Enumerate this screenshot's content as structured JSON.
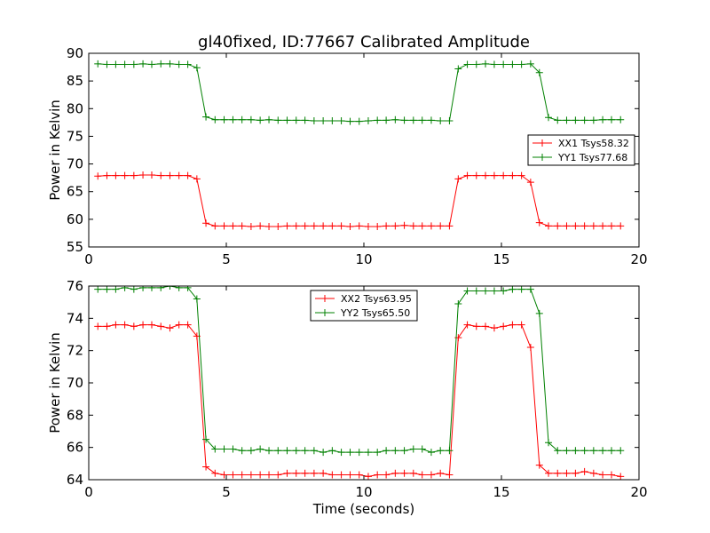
{
  "chart_data": [
    {
      "type": "line",
      "title": "gl40fixed, ID:77667 Calibrated Amplitude",
      "xlabel": "",
      "ylabel": "Power in Kelvin",
      "xlim": [
        0,
        20
      ],
      "ylim": [
        55,
        90
      ],
      "xticks": [
        0,
        5,
        10,
        15,
        20
      ],
      "yticks": [
        55,
        60,
        65,
        70,
        75,
        80,
        85,
        90
      ],
      "grid": false,
      "legend_position": "center-right",
      "x": [
        0.33,
        0.66,
        0.98,
        1.31,
        1.64,
        1.97,
        2.29,
        2.62,
        2.95,
        3.28,
        3.6,
        3.93,
        4.26,
        4.59,
        4.92,
        5.24,
        5.57,
        5.9,
        6.23,
        6.55,
        6.88,
        7.21,
        7.54,
        7.86,
        8.19,
        8.52,
        8.85,
        9.18,
        9.5,
        9.83,
        10.16,
        10.49,
        10.81,
        11.14,
        11.47,
        11.8,
        12.12,
        12.45,
        12.78,
        13.11,
        13.43,
        13.76,
        14.09,
        14.42,
        14.74,
        15.07,
        15.4,
        15.73,
        16.06,
        16.38,
        16.71,
        17.04,
        17.37,
        17.69,
        18.02,
        18.35,
        18.68,
        19.0,
        19.33
      ],
      "series": [
        {
          "name": "XX1 Tsys58.32",
          "color": "#ff0000",
          "values": [
            67.8,
            67.9,
            67.9,
            67.9,
            67.9,
            68.0,
            68.0,
            67.9,
            67.9,
            67.9,
            67.9,
            67.3,
            59.3,
            58.8,
            58.8,
            58.8,
            58.8,
            58.7,
            58.8,
            58.7,
            58.7,
            58.8,
            58.8,
            58.8,
            58.8,
            58.8,
            58.8,
            58.8,
            58.7,
            58.8,
            58.7,
            58.7,
            58.8,
            58.8,
            58.9,
            58.8,
            58.8,
            58.8,
            58.8,
            58.8,
            67.3,
            67.9,
            67.9,
            67.9,
            67.9,
            67.9,
            67.9,
            67.9,
            66.7,
            59.4,
            58.8,
            58.8,
            58.8,
            58.8,
            58.8,
            58.8,
            58.8,
            58.8,
            58.8
          ]
        },
        {
          "name": "YY1 Tsys77.68",
          "color": "#008000",
          "values": [
            88.1,
            88.0,
            88.0,
            88.0,
            88.0,
            88.1,
            88.0,
            88.1,
            88.1,
            88.0,
            88.0,
            87.4,
            78.5,
            78.0,
            78.0,
            78.0,
            78.0,
            78.0,
            77.9,
            78.0,
            77.9,
            77.9,
            77.9,
            77.9,
            77.8,
            77.8,
            77.8,
            77.8,
            77.7,
            77.7,
            77.8,
            77.9,
            77.9,
            78.0,
            77.9,
            77.9,
            77.9,
            77.9,
            77.8,
            77.8,
            87.2,
            88.0,
            88.0,
            88.1,
            88.0,
            88.0,
            88.0,
            88.0,
            88.1,
            86.5,
            78.4,
            77.9,
            77.9,
            77.9,
            77.9,
            77.9,
            78.0,
            78.0,
            78.0
          ]
        }
      ]
    },
    {
      "type": "line",
      "title": "",
      "xlabel": "Time (seconds)",
      "ylabel": "Power in Kelvin",
      "xlim": [
        0,
        20
      ],
      "ylim": [
        64,
        76
      ],
      "xticks": [
        0,
        5,
        10,
        15,
        20
      ],
      "yticks": [
        64,
        66,
        68,
        70,
        72,
        74,
        76
      ],
      "grid": false,
      "legend_position": "upper-center",
      "x": [
        0.33,
        0.66,
        0.98,
        1.31,
        1.64,
        1.97,
        2.29,
        2.62,
        2.95,
        3.28,
        3.6,
        3.93,
        4.26,
        4.59,
        4.92,
        5.24,
        5.57,
        5.9,
        6.23,
        6.55,
        6.88,
        7.21,
        7.54,
        7.86,
        8.19,
        8.52,
        8.85,
        9.18,
        9.5,
        9.83,
        10.16,
        10.49,
        10.81,
        11.14,
        11.47,
        11.8,
        12.12,
        12.45,
        12.78,
        13.11,
        13.43,
        13.76,
        14.09,
        14.42,
        14.74,
        15.07,
        15.4,
        15.73,
        16.06,
        16.38,
        16.71,
        17.04,
        17.37,
        17.69,
        18.02,
        18.35,
        18.68,
        19.0,
        19.33
      ],
      "series": [
        {
          "name": "XX2 Tsys63.95",
          "color": "#ff0000",
          "values": [
            73.5,
            73.5,
            73.6,
            73.6,
            73.5,
            73.6,
            73.6,
            73.5,
            73.4,
            73.6,
            73.6,
            72.9,
            64.8,
            64.4,
            64.3,
            64.3,
            64.3,
            64.3,
            64.3,
            64.3,
            64.3,
            64.4,
            64.4,
            64.4,
            64.4,
            64.4,
            64.3,
            64.3,
            64.3,
            64.3,
            64.2,
            64.3,
            64.3,
            64.4,
            64.4,
            64.4,
            64.3,
            64.3,
            64.4,
            64.3,
            72.8,
            73.6,
            73.5,
            73.5,
            73.4,
            73.5,
            73.6,
            73.6,
            72.2,
            64.9,
            64.4,
            64.4,
            64.4,
            64.4,
            64.5,
            64.4,
            64.3,
            64.3,
            64.2
          ]
        },
        {
          "name": "YY2 Tsys65.50",
          "color": "#008000",
          "values": [
            75.8,
            75.8,
            75.8,
            75.9,
            75.8,
            75.9,
            75.9,
            75.9,
            76.0,
            75.9,
            75.9,
            75.2,
            66.5,
            65.9,
            65.9,
            65.9,
            65.8,
            65.8,
            65.9,
            65.8,
            65.8,
            65.8,
            65.8,
            65.8,
            65.8,
            65.7,
            65.8,
            65.7,
            65.7,
            65.7,
            65.7,
            65.7,
            65.8,
            65.8,
            65.8,
            65.9,
            65.9,
            65.7,
            65.8,
            65.8,
            74.9,
            75.7,
            75.7,
            75.7,
            75.7,
            75.7,
            75.8,
            75.8,
            75.8,
            74.3,
            66.3,
            65.8,
            65.8,
            65.8,
            65.8,
            65.8,
            65.8,
            65.8,
            65.8
          ]
        }
      ]
    }
  ]
}
